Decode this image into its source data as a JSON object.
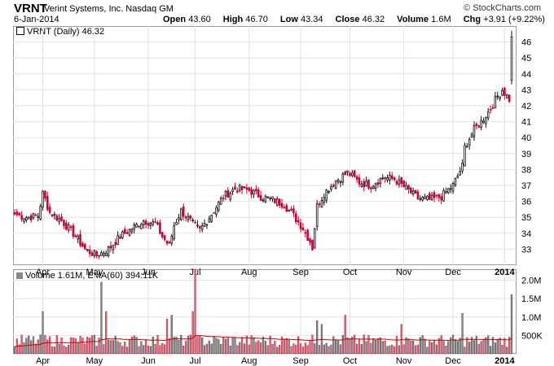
{
  "header": {
    "symbol": "VRNT",
    "company": "Verint Systems, Inc.  Nasdaq GM",
    "copyright": "© StockCharts.com",
    "date": "6-Jan-2014",
    "open_label": "Open",
    "open": "43.60",
    "high_label": "High",
    "high": "46.70",
    "low_label": "Low",
    "low": "43.34",
    "close_label": "Close",
    "close": "46.32",
    "volume_label": "Volume",
    "volume": "1.6M",
    "chg_label": "Chg",
    "chg": "+3.91 (+9.22%)"
  },
  "price_panel": {
    "legend": "VRNT (Daily) 46.32"
  },
  "volume_panel": {
    "legend": "Volume 1.61M, EMA(60) 394.11K"
  },
  "colors": {
    "up": "#111111",
    "down": "#cc0033",
    "ema": "#cc0000",
    "vol_up": "#888888",
    "vol_down": "#e06a7a"
  },
  "chart_data": [
    {
      "type": "candlestick",
      "title": "VRNT (Daily) 46.32",
      "xlabel": "",
      "ylabel": "",
      "x_ticks": [
        "Apr",
        "May",
        "Jun",
        "Jul",
        "Aug",
        "Sep",
        "Oct",
        "Nov",
        "Dec",
        "2014"
      ],
      "y_ticks": [
        33,
        34,
        35,
        36,
        37,
        38,
        39,
        40,
        41,
        42,
        43,
        44,
        45,
        46
      ],
      "ylim": [
        32,
        47
      ],
      "grid": true,
      "anchors": [
        {
          "date": "Mar 14",
          "close": 35.2
        },
        {
          "date": "Mar 21",
          "close": 35.0
        },
        {
          "date": "Mar 28",
          "close": 35.1
        },
        {
          "date": "Mar 31",
          "close": 36.5
        },
        {
          "date": "Apr 04",
          "close": 35.3
        },
        {
          "date": "Apr 11",
          "close": 34.8
        },
        {
          "date": "Apr 18",
          "close": 34.0
        },
        {
          "date": "Apr 25",
          "close": 33.0
        },
        {
          "date": "May 02",
          "close": 32.6
        },
        {
          "date": "May 09",
          "close": 33.0
        },
        {
          "date": "May 16",
          "close": 33.8
        },
        {
          "date": "May 23",
          "close": 34.3
        },
        {
          "date": "May 30",
          "close": 34.8
        },
        {
          "date": "Jun 06",
          "close": 34.6
        },
        {
          "date": "Jun 11",
          "close": 33.8
        },
        {
          "date": "Jun 14",
          "close": 33.2
        },
        {
          "date": "Jun 18",
          "close": 34.5
        },
        {
          "date": "Jun 21",
          "close": 35.4
        },
        {
          "date": "Jun 28",
          "close": 34.6
        },
        {
          "date": "Jul 03",
          "close": 34.2
        },
        {
          "date": "Jul 10",
          "close": 35.2
        },
        {
          "date": "Jul 17",
          "close": 36.3
        },
        {
          "date": "Jul 24",
          "close": 36.8
        },
        {
          "date": "Aug 01",
          "close": 36.7
        },
        {
          "date": "Aug 08",
          "close": 36.3
        },
        {
          "date": "Aug 15",
          "close": 36.1
        },
        {
          "date": "Aug 22",
          "close": 35.8
        },
        {
          "date": "Aug 28",
          "close": 35.1
        },
        {
          "date": "Sep 03",
          "close": 34.3
        },
        {
          "date": "Sep 06",
          "close": 33.5
        },
        {
          "date": "Sep 09",
          "close": 33.1
        },
        {
          "date": "Sep 11",
          "close": 35.7
        },
        {
          "date": "Sep 16",
          "close": 36.5
        },
        {
          "date": "Sep 23",
          "close": 37.3
        },
        {
          "date": "Sep 30",
          "close": 37.8
        },
        {
          "date": "Oct 07",
          "close": 37.2
        },
        {
          "date": "Oct 14",
          "close": 37.0
        },
        {
          "date": "Oct 21",
          "close": 37.5
        },
        {
          "date": "Oct 28",
          "close": 37.4
        },
        {
          "date": "Nov 04",
          "close": 36.8
        },
        {
          "date": "Nov 11",
          "close": 36.2
        },
        {
          "date": "Nov 18",
          "close": 36.1
        },
        {
          "date": "Nov 25",
          "close": 36.3
        },
        {
          "date": "Dec 02",
          "close": 37.0
        },
        {
          "date": "Dec 06",
          "close": 38.2
        },
        {
          "date": "Dec 09",
          "close": 39.4
        },
        {
          "date": "Dec 13",
          "close": 40.5
        },
        {
          "date": "Dec 18",
          "close": 41.0
        },
        {
          "date": "Dec 23",
          "close": 41.6
        },
        {
          "date": "Dec 27",
          "close": 42.6
        },
        {
          "date": "Dec 31",
          "close": 43.0
        },
        {
          "date": "Jan 03",
          "close": 42.4
        },
        {
          "date": "Jan 06",
          "close": 46.32
        }
      ]
    },
    {
      "type": "bar",
      "title": "Volume 1.61M, EMA(60) 394.11K",
      "xlabel": "",
      "ylabel": "",
      "x_ticks": [
        "Apr",
        "May",
        "Jun",
        "Jul",
        "Aug",
        "Sep",
        "Oct",
        "Nov",
        "Dec",
        "2014"
      ],
      "y_ticks": [
        "500K",
        "1.0M",
        "1.5M",
        "2.0M"
      ],
      "ylim": [
        0,
        2300000
      ],
      "ema_period": 60,
      "ema_last": 394110,
      "spikes": [
        {
          "date": "Mar 31",
          "volume": 1150000
        },
        {
          "date": "May 06",
          "volume": 1950000
        },
        {
          "date": "May 08",
          "volume": 1150000
        },
        {
          "date": "Jun 13",
          "volume": 950000
        },
        {
          "date": "Jun 17",
          "volume": 1050000
        },
        {
          "date": "Jun 28",
          "volume": 1150000
        },
        {
          "date": "Jul 01",
          "volume": 2400000
        },
        {
          "date": "Sep 11",
          "volume": 900000
        },
        {
          "date": "Sep 13",
          "volume": 800000
        },
        {
          "date": "Sep 27",
          "volume": 1050000
        },
        {
          "date": "Oct 31",
          "volume": 800000
        },
        {
          "date": "Dec 06",
          "volume": 1100000
        },
        {
          "date": "Jan 06",
          "volume": 1610000
        }
      ]
    }
  ]
}
